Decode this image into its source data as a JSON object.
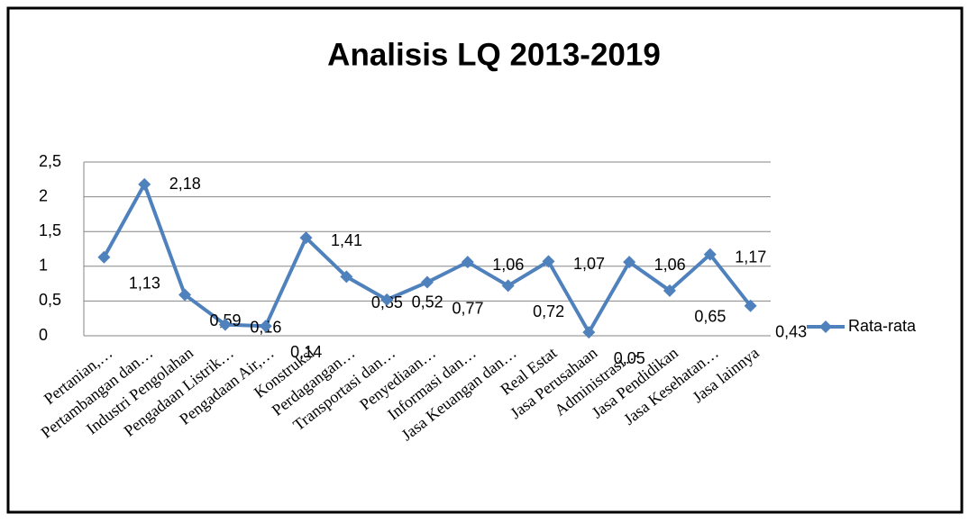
{
  "chart_data": {
    "type": "line",
    "title": "Analisis LQ 2013-2019",
    "categories": [
      "Pertanian,…",
      "Pertambangan dan…",
      "Industri Pengolahan",
      "Pengadaan Listrik…",
      "Pengadaan Air,…",
      "Konstruksi",
      "Perdagangan…",
      "Transportasi dan…",
      "Penyediaan…",
      "Informasi dan…",
      "Jasa Keuangan dan…",
      "Real Estat",
      "Jasa Perusahaan",
      "Administrasi…",
      "Jasa Pendidikan",
      "Jasa Kesehatan…",
      "Jasa lainnya"
    ],
    "series": [
      {
        "name": "Rata-rata",
        "color": "#4f81bd",
        "values": [
          1.13,
          2.18,
          0.59,
          0.16,
          0.14,
          1.41,
          0.85,
          0.52,
          0.77,
          1.06,
          0.72,
          1.07,
          0.05,
          1.06,
          0.65,
          1.17,
          0.43
        ],
        "value_labels": [
          "1,13",
          "2,18",
          "0,59",
          "0,16",
          "0,14",
          "1,41",
          "0,85",
          "0,52",
          "0,77",
          "1,06",
          "0,72",
          "1,07",
          "0,05",
          "1,06",
          "0,65",
          "1,17",
          "0,43"
        ]
      }
    ],
    "ylim": [
      0,
      2.5
    ],
    "yticks": [
      0,
      {
        "value": 0.5,
        "label": "0,5"
      },
      1,
      {
        "value": 1.5,
        "label": "1,5"
      },
      2,
      {
        "value": 2.5,
        "label": "2,5"
      }
    ],
    "grid": true,
    "legend": "right"
  }
}
